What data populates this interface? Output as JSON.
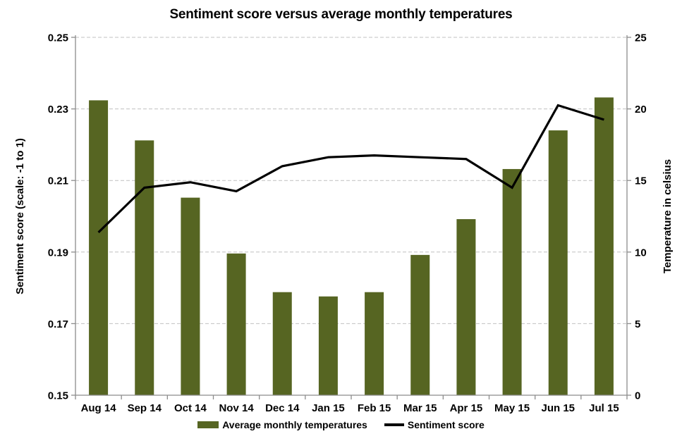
{
  "title": "Sentiment score versus average monthly temperatures",
  "legend": [
    {
      "label": "Average monthly temperatures",
      "type": "bar"
    },
    {
      "label": "Sentiment score",
      "type": "line"
    }
  ],
  "colors": {
    "background": "#FFFFFF",
    "bar": "#566522",
    "line": "#000000",
    "gridline": "#C0C0C0",
    "axis": "#8C8C8C",
    "text": "#000000"
  },
  "chart_data": {
    "type": "bar",
    "subtype": "combo bar + line, dual axis",
    "title": "Sentiment score versus average monthly temperatures",
    "categories": [
      "Aug 14",
      "Sep 14",
      "Oct 14",
      "Nov 14",
      "Dec 14",
      "Jan 15",
      "Feb 15",
      "Mar 15",
      "Apr 15",
      "May 15",
      "Jun 15",
      "Jul 15"
    ],
    "series": [
      {
        "name": "Average monthly temperatures",
        "type": "bar",
        "axis": "right",
        "color": "#566522",
        "values": [
          20.6,
          17.8,
          13.8,
          9.9,
          7.2,
          6.9,
          7.2,
          9.8,
          12.3,
          15.8,
          18.5,
          20.8
        ]
      },
      {
        "name": "Sentiment score",
        "type": "line",
        "axis": "left",
        "color": "#000000",
        "values": [
          0.1955,
          0.208,
          0.2095,
          0.207,
          0.214,
          0.2165,
          0.217,
          0.2165,
          0.216,
          0.208,
          0.231,
          0.227
        ]
      }
    ],
    "left_axis": {
      "label": "Sentiment score (scale: -1 to 1)",
      "min": 0.15,
      "max": 0.25,
      "ticks": [
        "0.25",
        "0.23",
        "0.21",
        "0.19",
        "0.17",
        "0.15"
      ]
    },
    "right_axis": {
      "label": "Temperature in celsius",
      "min": 0,
      "max": 25,
      "ticks": [
        "25",
        "20",
        "15",
        "10",
        "5",
        "0"
      ]
    },
    "grid": "horizontal dashed gridlines",
    "legend_position": "bottom"
  }
}
